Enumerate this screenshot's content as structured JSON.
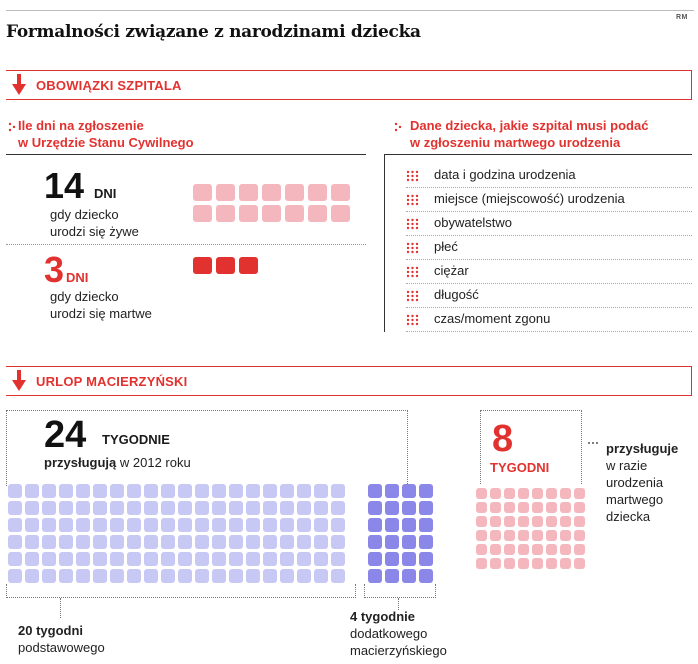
{
  "source_mark": "RM",
  "title": "Formalności związane z narodzinami dziecka",
  "colors": {
    "accent": "#e2322f",
    "pink": "#f4b7bd",
    "lavender": "#c7c8f4",
    "purple": "#8a87e8"
  },
  "sections": {
    "hospital": {
      "label": "OBOWIĄZKI SZPITALA"
    },
    "maternity": {
      "label": "URLOP MACIERZYŃSKI"
    }
  },
  "registration": {
    "heading_line1": "Ile dni na zgłoszenie",
    "heading_line2": "w Urzędzie Stanu Cywilnego",
    "alive": {
      "number": "14",
      "unit": "DNI",
      "line1": "gdy dziecko",
      "line2": "urodzi się żywe",
      "days": 14
    },
    "dead": {
      "number": "3",
      "unit": "DNI",
      "line1": "gdy dziecko",
      "line2": "urodzi się martwe",
      "days": 3
    }
  },
  "stillbirth_data": {
    "heading_line1": "Dane dziecka, jakie szpital musi podać",
    "heading_line2": "w zgłoszeniu martwego urodzenia",
    "items": [
      "data i godzina urodzenia",
      "miejsce (miejscowość) urodzenia",
      "obywatelstwo",
      "płeć",
      "ciężar",
      "długość",
      "czas/moment zgonu"
    ]
  },
  "leave": {
    "total": {
      "number": "24",
      "unit": "TYGODNIE",
      "bold_word": "przysługują",
      "rest": "w 2012 roku",
      "weeks": 24
    },
    "basic": {
      "bold": "20 tygodni",
      "line2": "podstawowego",
      "weeks": 20
    },
    "additional": {
      "bold": "4 tygodnie",
      "line2": "dodatkowego",
      "line3": "macierzyńskiego",
      "weeks": 4
    },
    "stillbirth": {
      "number": "8",
      "unit": "TYGODNI",
      "bold_word": "przysługuje",
      "line2": "w razie",
      "line3": "urodzenia",
      "line4": "martwego",
      "line5": "dziecka",
      "weeks": 8
    }
  }
}
